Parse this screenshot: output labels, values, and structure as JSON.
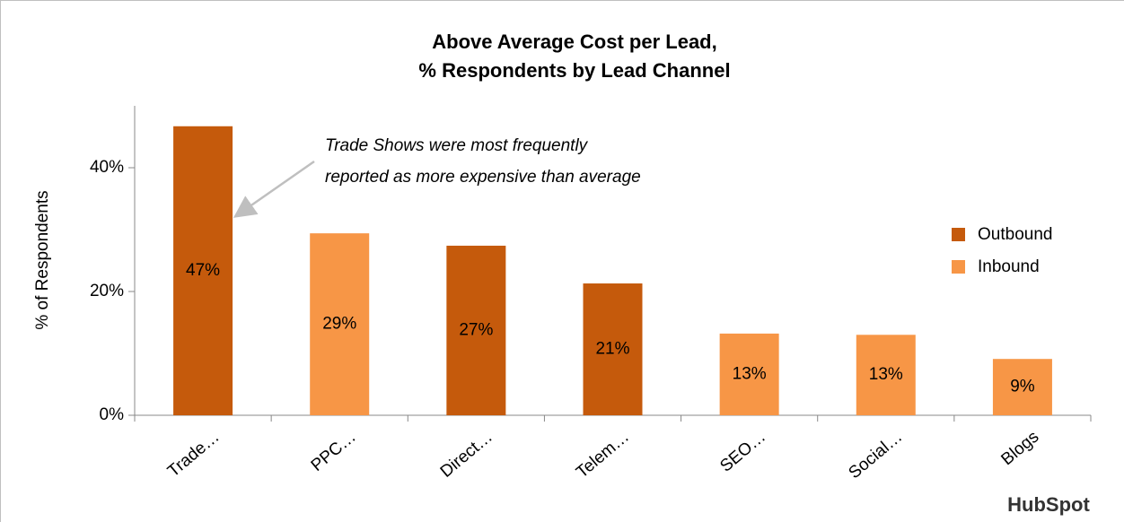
{
  "chart_data": {
    "type": "bar",
    "title": [
      "Above Average Cost per Lead,",
      "% Respondents by Lead Channel"
    ],
    "y_label": "% of Respondents",
    "annotation": [
      "Trade Shows were most frequently",
      "reported as more expensive than average"
    ],
    "brand": "HubSpot",
    "categories": [
      "Trade…",
      "PPC…",
      "Direct…",
      "Telem…",
      "SEO…",
      "Social…",
      "Blogs"
    ],
    "series": [
      {
        "name": "Outbound",
        "color": "#c55a0c",
        "values": [
          46.7,
          null,
          27.4,
          21.3,
          null,
          null,
          null
        ],
        "value_labels": [
          "47%",
          null,
          "27%",
          "21%",
          null,
          null,
          null
        ]
      },
      {
        "name": "Inbound",
        "color": "#f79646",
        "values": [
          null,
          29.4,
          null,
          null,
          13.2,
          13.0,
          9.1
        ],
        "value_labels": [
          null,
          "29%",
          null,
          null,
          "13%",
          "13%",
          "9%"
        ]
      }
    ],
    "ylim": [
      0,
      50
    ],
    "yticks": [
      {
        "value": 0,
        "label": "0%"
      },
      {
        "value": 20,
        "label": "20%"
      },
      {
        "value": 40,
        "label": "40%"
      }
    ],
    "grid": false,
    "legend": "right"
  }
}
